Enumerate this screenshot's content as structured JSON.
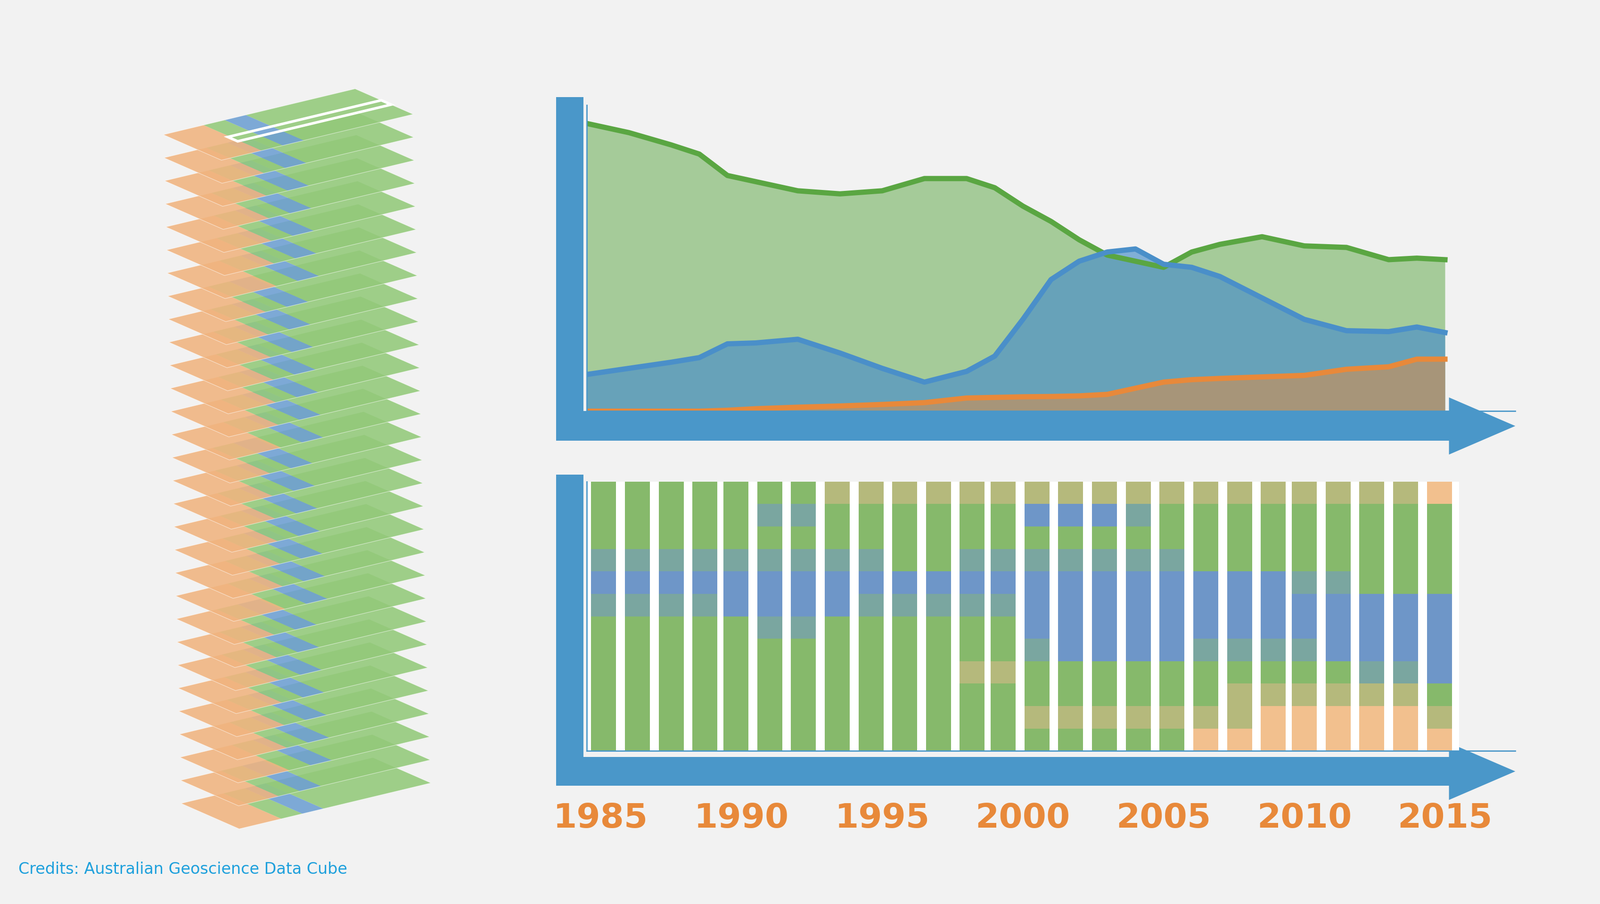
{
  "chart_data": [
    {
      "type": "area",
      "x": [
        1984.5,
        1986,
        1987.5,
        1988.5,
        1989.5,
        1990.5,
        1992,
        1993.5,
        1995,
        1996.5,
        1998,
        1999,
        2000,
        2001,
        2002,
        2003,
        2004,
        2005,
        2006,
        2007,
        2008.5,
        2010,
        2011.5,
        2013,
        2014,
        2015
      ],
      "series": [
        {
          "color": "#5aa642",
          "values": [
            94,
            91,
            87,
            84,
            77,
            75,
            72,
            71,
            72,
            76,
            76,
            73,
            67,
            62,
            56,
            51,
            49,
            47,
            52,
            54.5,
            57,
            54,
            53.5,
            49.5,
            50,
            49.5
          ]
        },
        {
          "color": "#4a8fc9",
          "values": [
            12,
            14,
            16,
            17.5,
            22,
            22.3,
            23.5,
            19,
            14,
            9.5,
            13,
            18,
            30,
            43,
            49,
            52,
            53,
            48,
            47,
            44,
            37,
            30,
            26.3,
            26,
            27.5,
            25.7
          ]
        },
        {
          "color": "#e8893a",
          "values": [
            0,
            0,
            0,
            0,
            0.3,
            0.8,
            1.3,
            1.7,
            2.2,
            2.8,
            4.3,
            4.5,
            4.7,
            4.8,
            5,
            5.5,
            7.5,
            9.5,
            10.3,
            10.7,
            11.2,
            11.7,
            13.7,
            14.5,
            17,
            17
          ]
        }
      ],
      "stacked": false,
      "xlim": [
        1984.5,
        2017.5
      ],
      "ylim": [
        0,
        100
      ],
      "tick_labels": false
    },
    {
      "type": "heatmap",
      "x": [
        1985.1,
        1986.3,
        1987.5,
        1988.7,
        1989.8,
        1991.0,
        1992.2,
        1993.4,
        1994.6,
        1995.8,
        1997.0,
        1998.2,
        1999.3,
        2000.5,
        2001.7,
        2002.9,
        2004.1,
        2005.3,
        2006.5,
        2007.7,
        2008.9,
        2010.0,
        2011.2,
        2012.4,
        2013.6,
        2014.8
      ],
      "colors": [
        "#86b96b",
        "#7aa6a0",
        "#6e96c8",
        "#b5b97c",
        "#f2c08e"
      ],
      "cells": [
        [
          0,
          0,
          0,
          1,
          2,
          1,
          0,
          0,
          0,
          0,
          0,
          0
        ],
        [
          0,
          0,
          0,
          1,
          2,
          1,
          0,
          0,
          0,
          0,
          0,
          0
        ],
        [
          0,
          0,
          0,
          1,
          2,
          1,
          0,
          0,
          0,
          0,
          0,
          0
        ],
        [
          0,
          0,
          0,
          1,
          2,
          1,
          0,
          0,
          0,
          0,
          0,
          0
        ],
        [
          0,
          0,
          0,
          1,
          2,
          2,
          0,
          0,
          0,
          0,
          0,
          0
        ],
        [
          0,
          1,
          0,
          1,
          2,
          2,
          1,
          0,
          0,
          0,
          0,
          0
        ],
        [
          0,
          1,
          0,
          1,
          2,
          2,
          1,
          0,
          0,
          0,
          0,
          0
        ],
        [
          3,
          0,
          0,
          1,
          2,
          2,
          0,
          0,
          0,
          0,
          0,
          0
        ],
        [
          3,
          0,
          0,
          1,
          2,
          1,
          0,
          0,
          0,
          0,
          0,
          0
        ],
        [
          3,
          0,
          0,
          0,
          2,
          1,
          0,
          0,
          0,
          0,
          0,
          0
        ],
        [
          3,
          0,
          0,
          0,
          2,
          1,
          0,
          0,
          0,
          0,
          0,
          0
        ],
        [
          3,
          0,
          0,
          1,
          2,
          1,
          0,
          0,
          3,
          0,
          0,
          0
        ],
        [
          3,
          0,
          0,
          1,
          2,
          1,
          0,
          0,
          3,
          0,
          0,
          0
        ],
        [
          3,
          2,
          0,
          1,
          2,
          2,
          2,
          1,
          0,
          0,
          3,
          0
        ],
        [
          3,
          2,
          0,
          1,
          2,
          2,
          2,
          2,
          0,
          0,
          3,
          0
        ],
        [
          3,
          2,
          0,
          1,
          2,
          2,
          2,
          2,
          0,
          0,
          3,
          0
        ],
        [
          3,
          1,
          0,
          1,
          2,
          2,
          2,
          2,
          0,
          0,
          3,
          0
        ],
        [
          3,
          0,
          0,
          1,
          2,
          2,
          2,
          2,
          0,
          0,
          3,
          0
        ],
        [
          3,
          0,
          0,
          0,
          2,
          2,
          2,
          1,
          0,
          0,
          3,
          4
        ],
        [
          3,
          0,
          0,
          0,
          2,
          2,
          2,
          1,
          0,
          3,
          3,
          4
        ],
        [
          3,
          0,
          0,
          0,
          2,
          2,
          2,
          1,
          0,
          3,
          4,
          4
        ],
        [
          3,
          0,
          0,
          0,
          1,
          2,
          2,
          1,
          0,
          3,
          4,
          4
        ],
        [
          3,
          0,
          0,
          0,
          1,
          2,
          2,
          2,
          0,
          3,
          4,
          4
        ],
        [
          3,
          0,
          0,
          0,
          0,
          2,
          2,
          2,
          1,
          3,
          4,
          4
        ],
        [
          3,
          0,
          0,
          0,
          0,
          2,
          2,
          2,
          1,
          3,
          4,
          4
        ],
        [
          4,
          0,
          0,
          0,
          0,
          2,
          2,
          2,
          2,
          0,
          3,
          4
        ]
      ],
      "xlim": [
        1984.5,
        2017.5
      ],
      "xticks": [
        1985,
        1990,
        1995,
        2000,
        2005,
        2010,
        2015
      ],
      "tick_labels": "x"
    }
  ],
  "credits": "Credits: Australian Geoscience Data Cube"
}
